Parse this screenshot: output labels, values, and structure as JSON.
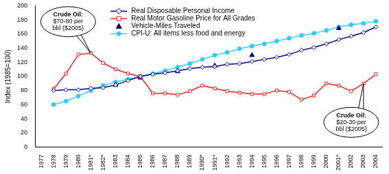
{
  "chart_data": {
    "type": "line",
    "y_label": "Index (1985=100)",
    "categories": [
      "1977",
      "1978",
      "1979",
      "1980",
      "1981*",
      "1982*",
      "1983",
      "1984",
      "1985",
      "1986",
      "1987",
      "1988",
      "1989",
      "1990*",
      "1991*",
      "1992",
      "1993",
      "1994",
      "1995",
      "1996",
      "1997",
      "1998",
      "1999",
      "2000",
      "2001*",
      "2002",
      "2003",
      "2004"
    ],
    "series": [
      {
        "name": "Real Disposable Personal Income",
        "color": "#000080",
        "marker": "diamond",
        "line_style": "solid",
        "values": [
          null,
          80,
          81,
          81,
          83,
          84,
          88,
          94,
          100,
          103,
          105,
          108,
          111,
          113,
          114,
          117,
          118,
          121,
          124,
          127,
          131,
          137,
          141,
          146,
          152,
          157,
          162,
          170
        ]
      },
      {
        "name": "Real Motor Gasoline Price for All Grades",
        "color": "#e8231f",
        "marker": "square",
        "line_style": "solid",
        "values": [
          null,
          82,
          104,
          131,
          133,
          119,
          110,
          104,
          100,
          76,
          76,
          74,
          79,
          87,
          83,
          79,
          77,
          75,
          75,
          80,
          78,
          67,
          73,
          90,
          87,
          79,
          90,
          103
        ]
      },
      {
        "name": "Vehicle-Miles Traveled",
        "color": "#000080",
        "marker": "triangle",
        "line_style": "none",
        "values": [
          null,
          null,
          null,
          null,
          null,
          null,
          88,
          null,
          98,
          null,
          null,
          107,
          null,
          null,
          115,
          null,
          null,
          130,
          null,
          null,
          null,
          null,
          null,
          null,
          168,
          null,
          null,
          null
        ]
      },
      {
        "name": "CPI-U: All items less food and energy",
        "color": "#33ccff",
        "marker": "circle",
        "line_style": "solid",
        "values": [
          null,
          60,
          65,
          72,
          80,
          87,
          92,
          96,
          100,
          104,
          108,
          113,
          118,
          124,
          130,
          134,
          139,
          143,
          146,
          150,
          154,
          158,
          161,
          165,
          170,
          173,
          175,
          178
        ]
      }
    ],
    "ylim": [
      0,
      200
    ],
    "yticks": [
      0,
      20,
      40,
      60,
      80,
      100,
      120,
      140,
      160,
      180,
      200
    ],
    "grid": false,
    "legend": "top",
    "annotations": [
      {
        "text": [
          "Crude Oil:",
          "$70-80 per",
          "bbl ($2005)"
        ],
        "x": "1981*",
        "y": 133
      },
      {
        "text": [
          "Crude Oil:",
          "$20-30 per",
          "bbl ($2005)"
        ],
        "x": "2003",
        "y": 90
      }
    ]
  }
}
